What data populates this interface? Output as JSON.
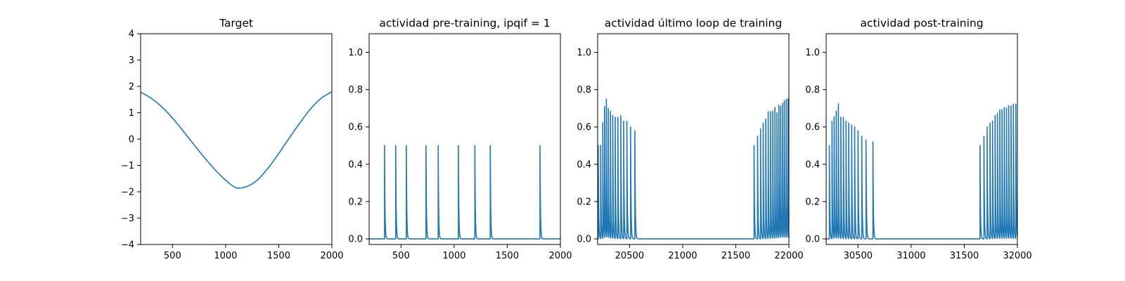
{
  "chart_data": [
    {
      "type": "line",
      "title": "Target",
      "xlabel": "",
      "ylabel": "",
      "xlim": [
        200,
        2000
      ],
      "ylim": [
        -4,
        4
      ],
      "x_ticks": [
        500,
        1000,
        1500,
        2000
      ],
      "y_ticks": [
        -4,
        -3,
        -2,
        -1,
        0,
        1,
        2,
        3,
        4
      ],
      "grid": false,
      "series": [
        {
          "color": "#1f77b4",
          "x": [
            200,
            300,
            400,
            500,
            600,
            700,
            800,
            900,
            1000,
            1100,
            1200,
            1300,
            1400,
            1500,
            1600,
            1700,
            1800,
            1900,
            2000
          ],
          "y": [
            1.78,
            1.55,
            1.22,
            0.8,
            0.31,
            -0.2,
            -0.7,
            -1.16,
            -1.56,
            -1.85,
            -1.8,
            -1.55,
            -1.1,
            -0.55,
            0.05,
            0.62,
            1.15,
            1.55,
            1.8
          ]
        }
      ]
    },
    {
      "type": "line",
      "title": "actividad pre-training, ipqif = 1",
      "xlabel": "",
      "ylabel": "",
      "xlim": [
        200,
        2000
      ],
      "ylim": [
        -0.03,
        1.1
      ],
      "x_ticks": [
        500,
        1000,
        1500,
        2000
      ],
      "y_ticks": [
        0.0,
        0.2,
        0.4,
        0.6,
        0.8,
        1.0
      ],
      "grid": false,
      "series": [
        {
          "color": "#1f77b4",
          "spikes": [
            {
              "x": 345,
              "peak": 0.5
            },
            {
              "x": 450,
              "peak": 0.5
            },
            {
              "x": 550,
              "peak": 0.5
            },
            {
              "x": 735,
              "peak": 0.5
            },
            {
              "x": 850,
              "peak": 0.5
            },
            {
              "x": 1040,
              "peak": 0.5
            },
            {
              "x": 1195,
              "peak": 0.5
            },
            {
              "x": 1340,
              "peak": 0.5
            },
            {
              "x": 1808,
              "peak": 0.5
            }
          ],
          "baseline": 0.0
        }
      ]
    },
    {
      "type": "line",
      "title": "actividad último loop de training",
      "xlabel": "",
      "ylabel": "",
      "xlim": [
        20200,
        22000
      ],
      "ylim": [
        -0.03,
        1.1
      ],
      "x_ticks": [
        20500,
        21000,
        21500,
        22000
      ],
      "y_ticks": [
        0.0,
        0.2,
        0.4,
        0.6,
        0.8,
        1.0
      ],
      "grid": false,
      "series": [
        {
          "color": "#1f77b4",
          "spikes": [
            {
              "x": 20205,
              "peak": 0.5
            },
            {
              "x": 20228,
              "peak": 0.5
            },
            {
              "x": 20248,
              "peak": 0.62
            },
            {
              "x": 20265,
              "peak": 0.7
            },
            {
              "x": 20282,
              "peak": 0.74
            },
            {
              "x": 20300,
              "peak": 0.69
            },
            {
              "x": 20320,
              "peak": 0.68
            },
            {
              "x": 20342,
              "peak": 0.66
            },
            {
              "x": 20365,
              "peak": 0.65
            },
            {
              "x": 20390,
              "peak": 0.65
            },
            {
              "x": 20418,
              "peak": 0.66
            },
            {
              "x": 20445,
              "peak": 0.63
            },
            {
              "x": 20475,
              "peak": 0.63
            },
            {
              "x": 20510,
              "peak": 0.6
            },
            {
              "x": 20550,
              "peak": 0.58
            },
            {
              "x": 21672,
              "peak": 0.5
            },
            {
              "x": 21705,
              "peak": 0.55
            },
            {
              "x": 21733,
              "peak": 0.59
            },
            {
              "x": 21758,
              "peak": 0.62
            },
            {
              "x": 21782,
              "peak": 0.64
            },
            {
              "x": 21805,
              "peak": 0.68
            },
            {
              "x": 21827,
              "peak": 0.68
            },
            {
              "x": 21848,
              "peak": 0.68
            },
            {
              "x": 21868,
              "peak": 0.7
            },
            {
              "x": 21887,
              "peak": 0.67
            },
            {
              "x": 21905,
              "peak": 0.71
            },
            {
              "x": 21922,
              "peak": 0.7
            },
            {
              "x": 21940,
              "peak": 0.72
            },
            {
              "x": 21957,
              "peak": 0.73
            },
            {
              "x": 21975,
              "peak": 0.74
            },
            {
              "x": 21992,
              "peak": 0.74
            }
          ],
          "baseline": 0.0
        }
      ]
    },
    {
      "type": "line",
      "title": "actividad post-training",
      "xlabel": "",
      "ylabel": "",
      "xlim": [
        30200,
        32000
      ],
      "ylim": [
        -0.03,
        1.1
      ],
      "x_ticks": [
        30500,
        31000,
        31500,
        32000
      ],
      "y_ticks": [
        0.0,
        0.2,
        0.4,
        0.6,
        0.8,
        1.0
      ],
      "grid": false,
      "series": [
        {
          "color": "#1f77b4",
          "spikes": [
            {
              "x": 30230,
              "peak": 0.5
            },
            {
              "x": 30255,
              "peak": 0.63
            },
            {
              "x": 30275,
              "peak": 0.65
            },
            {
              "x": 30295,
              "peak": 0.68
            },
            {
              "x": 30315,
              "peak": 0.72
            },
            {
              "x": 30338,
              "peak": 0.65
            },
            {
              "x": 30362,
              "peak": 0.65
            },
            {
              "x": 30387,
              "peak": 0.63
            },
            {
              "x": 30412,
              "peak": 0.62
            },
            {
              "x": 30440,
              "peak": 0.61
            },
            {
              "x": 30468,
              "peak": 0.6
            },
            {
              "x": 30500,
              "peak": 0.58
            },
            {
              "x": 30535,
              "peak": 0.55
            },
            {
              "x": 30575,
              "peak": 0.53
            },
            {
              "x": 30640,
              "peak": 0.52
            },
            {
              "x": 31648,
              "peak": 0.5
            },
            {
              "x": 31685,
              "peak": 0.55
            },
            {
              "x": 31715,
              "peak": 0.6
            },
            {
              "x": 31742,
              "peak": 0.62
            },
            {
              "x": 31766,
              "peak": 0.63
            },
            {
              "x": 31790,
              "peak": 0.66
            },
            {
              "x": 31812,
              "peak": 0.67
            },
            {
              "x": 31834,
              "peak": 0.69
            },
            {
              "x": 31855,
              "peak": 0.69
            },
            {
              "x": 31876,
              "peak": 0.7
            },
            {
              "x": 31897,
              "peak": 0.7
            },
            {
              "x": 31918,
              "peak": 0.71
            },
            {
              "x": 31940,
              "peak": 0.71
            },
            {
              "x": 31962,
              "peak": 0.72
            },
            {
              "x": 31985,
              "peak": 0.72
            }
          ],
          "baseline": 0.0
        }
      ]
    }
  ]
}
